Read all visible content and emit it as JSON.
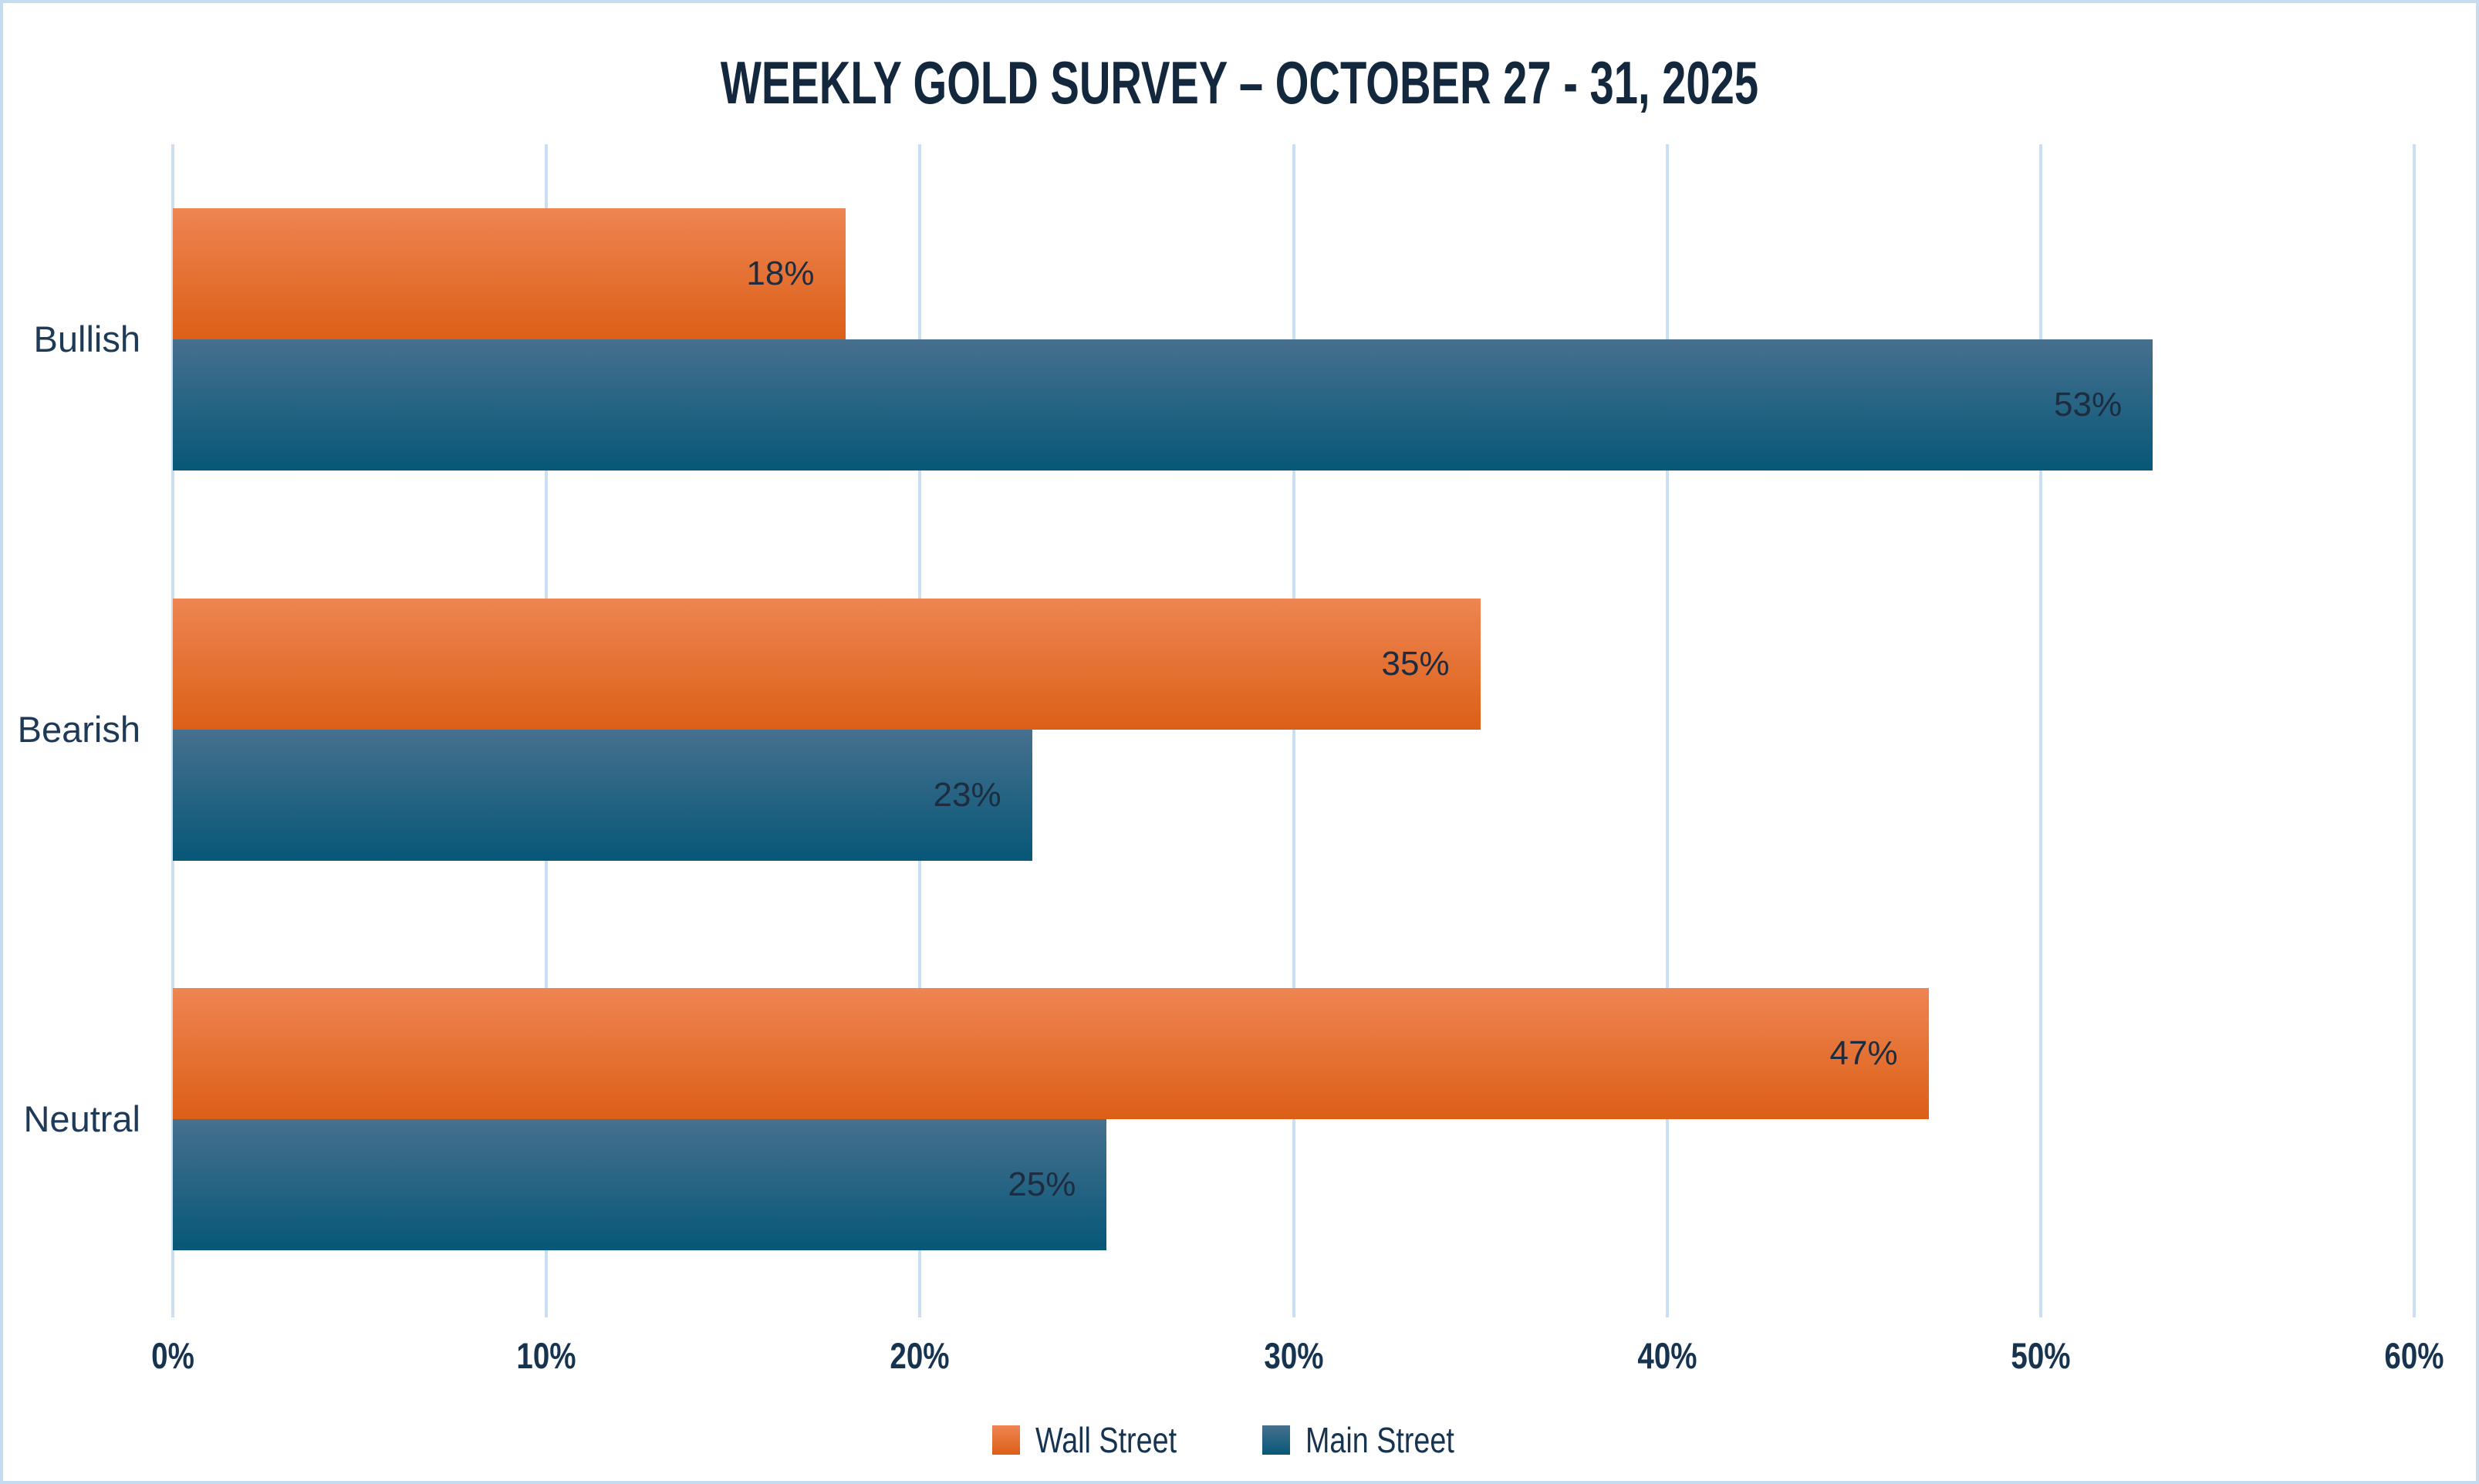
{
  "title": "WEEKLY GOLD SURVEY – OCTOBER 27 - 31, 2025",
  "colors": {
    "border": "#C5DBF0",
    "grid": "#CBDFF3",
    "title_text": "#13283D",
    "category_text": "#1E3A57",
    "tick_text": "#16334F",
    "data_label_text": "#1D2C3E",
    "orange_top": "#EE8552",
    "orange_bottom": "#DC5F17",
    "blue_top": "#46708E",
    "blue_bottom": "#075778"
  },
  "chart_data": {
    "type": "bar",
    "orientation": "horizontal",
    "title": "WEEKLY GOLD SURVEY – OCTOBER 27 - 31, 2025",
    "categories": [
      "Bullish",
      "Bearish",
      "Neutral"
    ],
    "series": [
      {
        "name": "Wall Street",
        "color": "orange",
        "values": [
          18,
          35,
          47
        ],
        "data_labels": [
          "18%",
          "35%",
          "47%"
        ]
      },
      {
        "name": "Main Street",
        "color": "blue",
        "values": [
          53,
          23,
          25
        ],
        "data_labels": [
          "53%",
          "23%",
          "25%"
        ]
      }
    ],
    "xlabel": "",
    "ylabel": "",
    "xlim": [
      0,
      60
    ],
    "x_tick_values": [
      0,
      10,
      20,
      30,
      40,
      50,
      60
    ],
    "x_tick_labels": [
      "0%",
      "10%",
      "20%",
      "30%",
      "40%",
      "50%",
      "60%"
    ],
    "grid": true,
    "gridlines": "vertical",
    "data_label_position": "inside-end",
    "legend_position": "bottom"
  }
}
